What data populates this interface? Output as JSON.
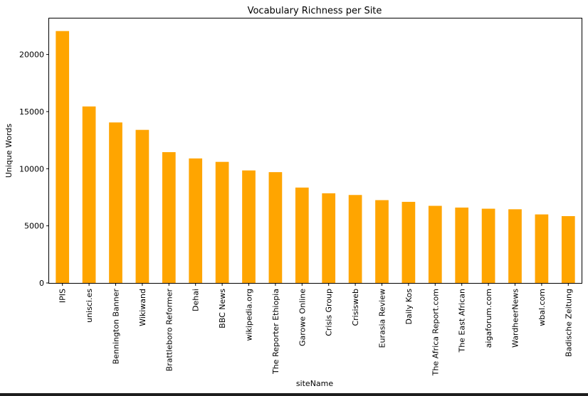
{
  "chart_data": {
    "type": "bar",
    "title": "Vocabulary Richness per Site",
    "xlabel": "siteName",
    "ylabel": "Unique Words",
    "categories": [
      "IPIS",
      "unisci.es",
      "Bennington Banner",
      "Wikiwand",
      "Brattleboro Reformer",
      "Dehai",
      "BBC News",
      "wikipedia.org",
      "The Reporter Ethiopia",
      "Garowe Online",
      "Crisis Group",
      "Crisisweb",
      "Eurasia Review",
      "Daily Kos",
      "The Africa Report.com",
      "The East African",
      "aigaforum.com",
      "WardheerNews",
      "wbal.com",
      "Badische Zeitung"
    ],
    "values": [
      22050,
      15450,
      14050,
      13400,
      11450,
      10900,
      10600,
      9850,
      9700,
      8350,
      7850,
      7700,
      7250,
      7100,
      6750,
      6600,
      6500,
      6450,
      6000,
      5850
    ],
    "yticks": [
      0,
      5000,
      10000,
      15000,
      20000
    ],
    "ylim": [
      0,
      23150
    ],
    "bar_color": "#ffa500",
    "grid": false,
    "legend": "none"
  }
}
